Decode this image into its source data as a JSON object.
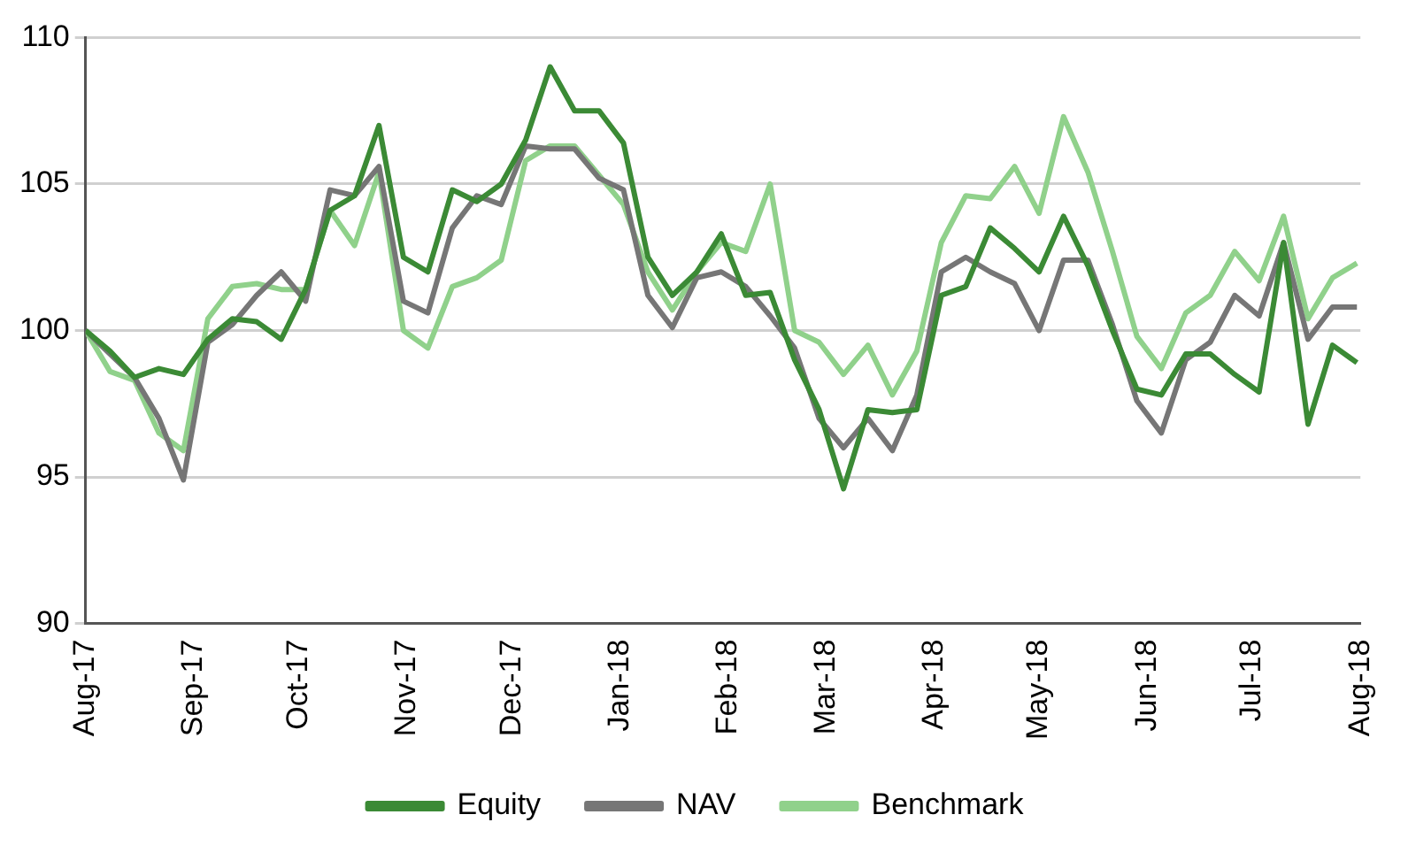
{
  "chart_data": {
    "type": "line",
    "x": [
      "2017-08-01",
      "2017-08-08",
      "2017-08-15",
      "2017-08-22",
      "2017-08-29",
      "2017-09-05",
      "2017-09-12",
      "2017-09-19",
      "2017-09-26",
      "2017-10-03",
      "2017-10-10",
      "2017-10-17",
      "2017-10-24",
      "2017-10-31",
      "2017-11-07",
      "2017-11-14",
      "2017-11-21",
      "2017-11-28",
      "2017-12-05",
      "2017-12-12",
      "2017-12-19",
      "2017-12-26",
      "2018-01-02",
      "2018-01-09",
      "2018-01-16",
      "2018-01-23",
      "2018-01-30",
      "2018-02-06",
      "2018-02-13",
      "2018-02-20",
      "2018-02-27",
      "2018-03-06",
      "2018-03-13",
      "2018-03-20",
      "2018-03-27",
      "2018-04-03",
      "2018-04-10",
      "2018-04-17",
      "2018-04-24",
      "2018-05-01",
      "2018-05-08",
      "2018-05-15",
      "2018-05-22",
      "2018-05-29",
      "2018-06-05",
      "2018-06-12",
      "2018-06-19",
      "2018-06-26",
      "2018-07-03",
      "2018-07-10",
      "2018-07-17",
      "2018-07-24",
      "2018-07-31"
    ],
    "series": [
      {
        "name": "Equity",
        "color": "#3b8a35",
        "values": [
          100,
          99.3,
          98.4,
          98.7,
          98.5,
          99.7,
          100.4,
          100.3,
          99.7,
          101.4,
          104.1,
          104.6,
          107.0,
          102.5,
          102.0,
          104.8,
          104.4,
          105.0,
          106.5,
          109.0,
          107.5,
          107.5,
          106.4,
          102.5,
          101.2,
          102.0,
          103.3,
          101.2,
          101.3,
          99.0,
          97.3,
          94.6,
          97.3,
          97.2,
          97.3,
          101.2,
          101.5,
          103.5,
          102.8,
          102.0,
          103.9,
          102.2,
          100.0,
          98.0,
          97.8,
          99.2,
          99.2,
          98.5,
          97.9,
          103.0,
          96.8,
          99.5,
          98.9
        ]
      },
      {
        "name": "NAV",
        "color": "#767676",
        "values": [
          100,
          99.2,
          98.4,
          97.0,
          94.9,
          99.6,
          100.2,
          101.2,
          102.0,
          101.0,
          104.8,
          104.6,
          105.6,
          101.0,
          100.6,
          103.5,
          104.6,
          104.3,
          106.3,
          106.2,
          106.2,
          105.2,
          104.8,
          101.2,
          100.1,
          101.8,
          102.0,
          101.5,
          100.5,
          99.4,
          97.0,
          96.0,
          97.0,
          95.9,
          97.8,
          102.0,
          102.5,
          102.0,
          101.6,
          100.0,
          102.4,
          102.4,
          100.2,
          97.6,
          96.5,
          99.0,
          99.6,
          101.2,
          100.5,
          103.0,
          99.7,
          100.8,
          100.8
        ]
      },
      {
        "name": "Benchmark",
        "color": "#90d18b",
        "values": [
          100,
          98.6,
          98.3,
          96.5,
          95.9,
          100.4,
          101.5,
          101.6,
          101.4,
          101.4,
          104.1,
          102.9,
          105.4,
          100.0,
          99.4,
          101.5,
          101.8,
          102.4,
          105.8,
          106.3,
          106.3,
          105.3,
          104.3,
          102.0,
          100.7,
          102.0,
          103.0,
          102.7,
          105.0,
          100.0,
          99.6,
          98.5,
          99.5,
          97.8,
          99.3,
          103.0,
          104.6,
          104.5,
          105.6,
          104.0,
          107.3,
          105.4,
          102.7,
          99.8,
          98.7,
          100.6,
          101.2,
          102.7,
          101.7,
          103.9,
          100.4,
          101.8,
          102.3
        ]
      }
    ],
    "xlim": [
      "2017-08-01",
      "2018-08-01"
    ],
    "xticks": [
      {
        "value": "2017-08-01",
        "label": "Aug-17"
      },
      {
        "value": "2017-09-01",
        "label": "Sep-17"
      },
      {
        "value": "2017-10-01",
        "label": "Oct-17"
      },
      {
        "value": "2017-11-01",
        "label": "Nov-17"
      },
      {
        "value": "2017-12-01",
        "label": "Dec-17"
      },
      {
        "value": "2018-01-01",
        "label": "Jan-18"
      },
      {
        "value": "2018-02-01",
        "label": "Feb-18"
      },
      {
        "value": "2018-03-01",
        "label": "Mar-18"
      },
      {
        "value": "2018-04-01",
        "label": "Apr-18"
      },
      {
        "value": "2018-05-01",
        "label": "May-18"
      },
      {
        "value": "2018-06-01",
        "label": "Jun-18"
      },
      {
        "value": "2018-07-01",
        "label": "Jul-18"
      },
      {
        "value": "2018-08-01",
        "label": "Aug-18"
      }
    ],
    "ylim": [
      90,
      110
    ],
    "yticks": [
      90,
      95,
      100,
      105,
      110
    ],
    "grid": "y",
    "legend": "bottom",
    "marker": "none",
    "line_style": "solid"
  }
}
